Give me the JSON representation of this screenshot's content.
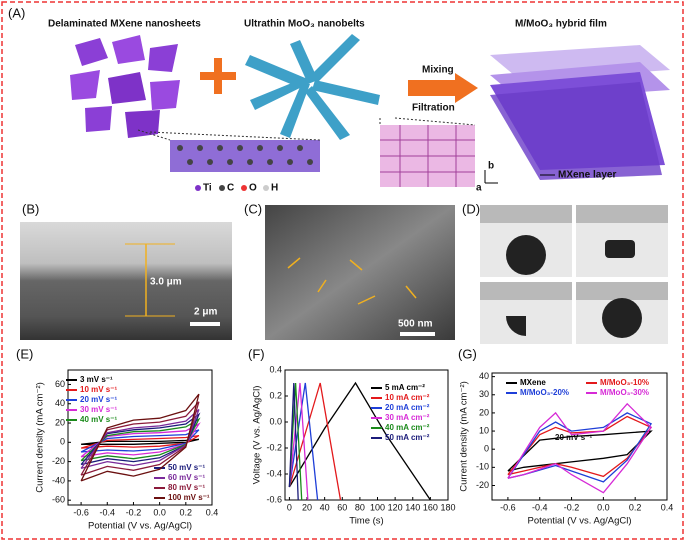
{
  "figure": {
    "panels": [
      "(A)",
      "(B)",
      "(C)",
      "(D)",
      "(E)",
      "(F)",
      "(G)"
    ],
    "schematic": {
      "mxene": "Delaminated MXene nanosheets",
      "moo3": "Ultrathin MoO₃ nanobelts",
      "film": "M/MoO₃ hybrid film",
      "step1": "Mixing",
      "step2": "Filtration",
      "layer": "MXene layer",
      "atoms": [
        "Ti",
        "C",
        "O",
        "H"
      ],
      "axis_a": "a",
      "axis_b": "b"
    },
    "sem_b": {
      "thickness": "3.0 μm",
      "scale": "2 μm"
    },
    "sem_c": {
      "scale": "500 nm"
    }
  },
  "chart_data": [
    {
      "type": "line",
      "x_label": "Potential (V vs. Ag/AgCl)",
      "y_label": "Current density (mA cm⁻²)",
      "xlim": [
        -0.7,
        0.4
      ],
      "ylim": [
        -65,
        75
      ],
      "xticks": [
        -0.6,
        -0.4,
        -0.2,
        {
          "value": 0,
          "label": "0.0"
        },
        0.2,
        0.4
      ],
      "yticks": [
        -60,
        -40,
        -20,
        0,
        20,
        40,
        60
      ],
      "x": [
        -0.6,
        -0.4,
        -0.2,
        0,
        0.2,
        0.3,
        0.2,
        0,
        -0.2,
        -0.4,
        -0.6
      ],
      "series": [
        {
          "name": "3 mV s⁻¹",
          "color": "#000000",
          "values": [
            -2,
            1,
            1,
            1,
            2,
            3,
            0,
            -1,
            -2,
            -2,
            -2
          ]
        },
        {
          "name": "10 mV s⁻¹",
          "color": "#e3191c",
          "values": [
            -6,
            2,
            3,
            4,
            5,
            7,
            -1,
            -4,
            -5,
            -4,
            -6
          ]
        },
        {
          "name": "20 mV s⁻¹",
          "color": "#1f3fd8",
          "values": [
            -10,
            4,
            6,
            7,
            8,
            13,
            -1,
            -7,
            -9,
            -8,
            -10
          ]
        },
        {
          "name": "30 mV s⁻¹",
          "color": "#d62ad6",
          "values": [
            -15,
            6,
            9,
            10,
            12,
            19,
            -2,
            -10,
            -13,
            -11,
            -15
          ]
        },
        {
          "name": "40 mV s⁻¹",
          "color": "#1a8a1a",
          "values": [
            -19,
            7,
            11,
            12,
            16,
            24,
            -2,
            -13,
            -17,
            -14,
            -19
          ]
        },
        {
          "name": "50 mV s⁻¹",
          "color": "#1b1b7a",
          "values": [
            -23,
            9,
            13,
            15,
            19,
            29,
            -3,
            -16,
            -20,
            -17,
            -23
          ]
        },
        {
          "name": "60 mV s⁻¹",
          "color": "#7a2a9a",
          "values": [
            -27,
            10,
            15,
            17,
            22,
            34,
            -3,
            -19,
            -24,
            -20,
            -27
          ]
        },
        {
          "name": "80 mV s⁻¹",
          "color": "#8b1a3a",
          "values": [
            -34,
            13,
            19,
            21,
            27,
            42,
            -4,
            -23,
            -29,
            -25,
            -34
          ]
        },
        {
          "name": "100 mV s⁻¹",
          "color": "#6b1010",
          "values": [
            -40,
            15,
            23,
            25,
            33,
            50,
            -5,
            -28,
            -35,
            -30,
            -40
          ]
        }
      ]
    },
    {
      "type": "line",
      "x_label": "Time (s)",
      "y_label": "Voltage (V vs. Ag/AgCl)",
      "xlim": [
        -5,
        180
      ],
      "ylim": [
        -0.6,
        0.4
      ],
      "xticks": [
        0,
        20,
        40,
        60,
        80,
        100,
        120,
        140,
        160,
        180
      ],
      "yticks": [
        -0.6,
        -0.4,
        -0.2,
        {
          "value": 0,
          "label": "0.0"
        },
        0.2,
        0.4
      ],
      "series": [
        {
          "name": "5 mA cm⁻²",
          "color": "#000000",
          "x": [
            0,
            40,
            75,
            110,
            160
          ],
          "values": [
            -0.5,
            -0.05,
            0.3,
            -0.1,
            -0.6
          ]
        },
        {
          "name": "10 mA cm⁻²",
          "color": "#e3191c",
          "x": [
            0,
            35,
            58
          ],
          "values": [
            -0.5,
            0.3,
            -0.6
          ]
        },
        {
          "name": "20 mA cm⁻²",
          "color": "#1f3fd8",
          "x": [
            0,
            18,
            32
          ],
          "values": [
            -0.5,
            0.3,
            -0.6
          ]
        },
        {
          "name": "30 mA cm⁻²",
          "color": "#d62ad6",
          "x": [
            0,
            12,
            21
          ],
          "values": [
            -0.5,
            0.3,
            -0.6
          ]
        },
        {
          "name": "40 mA cm⁻²",
          "color": "#1a8a1a",
          "x": [
            0,
            7,
            14
          ],
          "values": [
            -0.5,
            0.3,
            -0.6
          ]
        },
        {
          "name": "50 mA cm⁻²",
          "color": "#1b1b7a",
          "x": [
            0,
            5,
            10
          ],
          "values": [
            -0.5,
            0.3,
            -0.6
          ]
        }
      ]
    },
    {
      "type": "line",
      "x_label": "Potential (V vs. Ag/AgCl)",
      "y_label": "Current density (mA cm⁻²)",
      "annotation": "20 mV s⁻¹",
      "xlim": [
        -0.7,
        0.4
      ],
      "ylim": [
        -28,
        42
      ],
      "xticks": [
        -0.6,
        -0.4,
        -0.2,
        {
          "value": 0,
          "label": "0.0"
        },
        0.2,
        0.4
      ],
      "yticks": [
        -20,
        -10,
        0,
        10,
        20,
        30,
        40
      ],
      "x": [
        -0.6,
        -0.4,
        -0.3,
        -0.2,
        0,
        0.15,
        0.3,
        0.15,
        0,
        -0.2,
        -0.3,
        -0.5,
        -0.6
      ],
      "series": [
        {
          "name": "MXene",
          "color": "#000000",
          "values": [
            -12,
            5,
            6,
            7,
            8,
            9,
            10,
            -3,
            -5,
            -7,
            -8,
            -10,
            -12
          ]
        },
        {
          "name": "M/MoO₃-10%",
          "color": "#e3191c",
          "values": [
            -14,
            8,
            12,
            9,
            10,
            18,
            12,
            -5,
            -15,
            -10,
            -8,
            -12,
            -14
          ]
        },
        {
          "name": "M/MoO₃-20%",
          "color": "#1f3fd8",
          "values": [
            -16,
            10,
            15,
            10,
            12,
            20,
            14,
            -6,
            -18,
            -12,
            -9,
            -14,
            -16
          ]
        },
        {
          "name": "M/MoO₃-30%",
          "color": "#d62ad6",
          "values": [
            -16,
            12,
            20,
            8,
            10,
            25,
            12,
            -8,
            -24,
            -14,
            -8,
            -14,
            -16
          ]
        }
      ]
    }
  ]
}
